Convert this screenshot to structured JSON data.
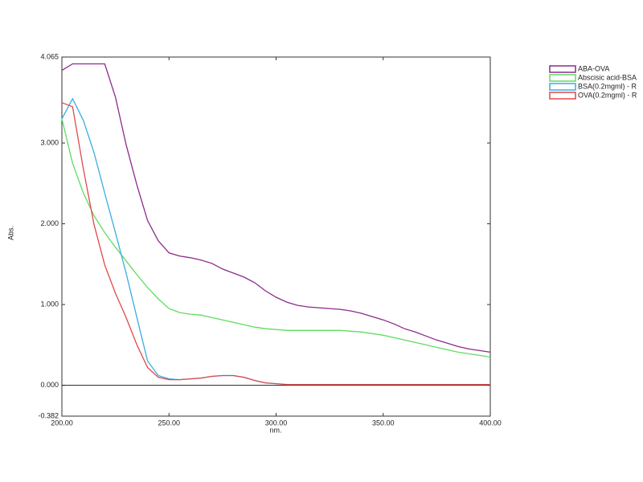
{
  "chart_data": {
    "type": "line",
    "x_label": "nm.",
    "y_label": "Abs.",
    "legend": "outside-right",
    "x": [
      200,
      205,
      210,
      215,
      220,
      225,
      230,
      235,
      240,
      245,
      250,
      255,
      260,
      265,
      270,
      275,
      280,
      285,
      290,
      295,
      300,
      305,
      310,
      315,
      320,
      325,
      330,
      335,
      340,
      345,
      350,
      355,
      360,
      365,
      370,
      375,
      380,
      385,
      390,
      395,
      400
    ],
    "series": [
      {
        "name": "ABA-OVA",
        "color": "#8e2a8c",
        "values": [
          3.9,
          3.98,
          3.98,
          3.98,
          3.98,
          3.57,
          2.98,
          2.48,
          2.04,
          1.79,
          1.64,
          1.6,
          1.58,
          1.55,
          1.51,
          1.44,
          1.39,
          1.34,
          1.27,
          1.17,
          1.09,
          1.03,
          0.99,
          0.97,
          0.96,
          0.95,
          0.94,
          0.92,
          0.89,
          0.85,
          0.81,
          0.76,
          0.7,
          0.66,
          0.61,
          0.56,
          0.52,
          0.48,
          0.45,
          0.43,
          0.41
        ]
      },
      {
        "name": "Abscisic acid-BSA",
        "color": "#5fdc5f",
        "values": [
          3.3,
          2.75,
          2.38,
          2.1,
          1.89,
          1.71,
          1.54,
          1.37,
          1.21,
          1.07,
          0.95,
          0.9,
          0.88,
          0.87,
          0.84,
          0.81,
          0.78,
          0.75,
          0.72,
          0.7,
          0.69,
          0.68,
          0.68,
          0.68,
          0.68,
          0.68,
          0.68,
          0.67,
          0.66,
          0.64,
          0.62,
          0.59,
          0.56,
          0.53,
          0.5,
          0.47,
          0.44,
          0.41,
          0.39,
          0.37,
          0.35
        ]
      },
      {
        "name": "BSA(0.2mgml) - R",
        "color": "#3aaee0",
        "values": [
          3.3,
          3.55,
          3.28,
          2.88,
          2.38,
          1.89,
          1.39,
          0.84,
          0.3,
          0.12,
          0.08,
          0.07,
          0.08,
          0.09,
          0.11,
          0.12,
          0.12,
          0.1,
          0.06,
          0.03,
          0.02,
          0.01,
          0.01,
          0.01,
          0.01,
          0.01,
          0.01,
          0.01,
          0.01,
          0.01,
          0.01,
          0.01,
          0.01,
          0.01,
          0.01,
          0.01,
          0.01,
          0.01,
          0.01,
          0.01,
          0.01
        ]
      },
      {
        "name": "OVA(0.2mgml) - R",
        "color": "#e04848",
        "values": [
          3.5,
          3.45,
          2.68,
          1.99,
          1.49,
          1.14,
          0.84,
          0.5,
          0.22,
          0.1,
          0.07,
          0.07,
          0.08,
          0.09,
          0.11,
          0.12,
          0.12,
          0.1,
          0.06,
          0.03,
          0.02,
          0.01,
          0.01,
          0.01,
          0.01,
          0.01,
          0.01,
          0.01,
          0.01,
          0.01,
          0.01,
          0.01,
          0.01,
          0.01,
          0.01,
          0.01,
          0.01,
          0.01,
          0.01,
          0.01,
          0.01
        ]
      }
    ],
    "xlim": [
      200,
      400
    ],
    "xticks": [
      {
        "value": 200,
        "label": "200.00"
      },
      {
        "value": 250,
        "label": "250.00"
      },
      {
        "value": 300,
        "label": "300.00"
      },
      {
        "value": 350,
        "label": "350.00"
      },
      {
        "value": 400,
        "label": "400.00"
      }
    ],
    "ylim": [
      -0.382,
      4.065
    ],
    "yticks": [
      -0.382,
      {
        "value": 0,
        "label": "0.000"
      },
      {
        "value": 1,
        "label": "1.000"
      },
      {
        "value": 2,
        "label": "2.000"
      },
      {
        "value": 3,
        "label": "3.000"
      },
      4.065
    ]
  }
}
